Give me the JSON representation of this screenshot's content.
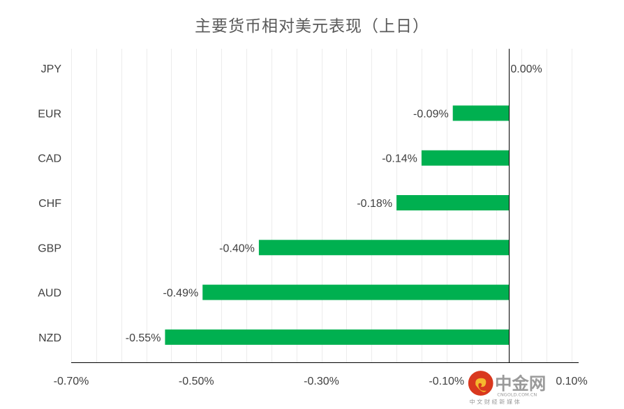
{
  "chart_data": {
    "type": "bar",
    "orientation": "horizontal",
    "title": "主要货币相对美元表现（上日）",
    "categories": [
      "JPY",
      "EUR",
      "CAD",
      "CHF",
      "GBP",
      "AUD",
      "NZD"
    ],
    "values": [
      0.0,
      -0.09,
      -0.14,
      -0.18,
      -0.4,
      -0.49,
      -0.55
    ],
    "data_labels": [
      "0.00%",
      "-0.09%",
      "-0.14%",
      "-0.18%",
      "-0.40%",
      "-0.49%",
      "-0.55%"
    ],
    "xlim": [
      -0.7,
      0.1
    ],
    "xticks": [
      -0.7,
      -0.5,
      -0.3,
      -0.1,
      0.1
    ],
    "xtick_labels": [
      "-0.70%",
      "-0.50%",
      "-0.30%",
      "-0.10%",
      "0.10%"
    ],
    "minor_grid_step": 0.04,
    "grid": true,
    "bar_color": "#00B050",
    "xlabel": "",
    "ylabel": ""
  },
  "watermark": {
    "brand": "中金网",
    "domain": "CNGOLD.COM.CN",
    "tagline": "中 文 财 经 新 媒 体"
  }
}
